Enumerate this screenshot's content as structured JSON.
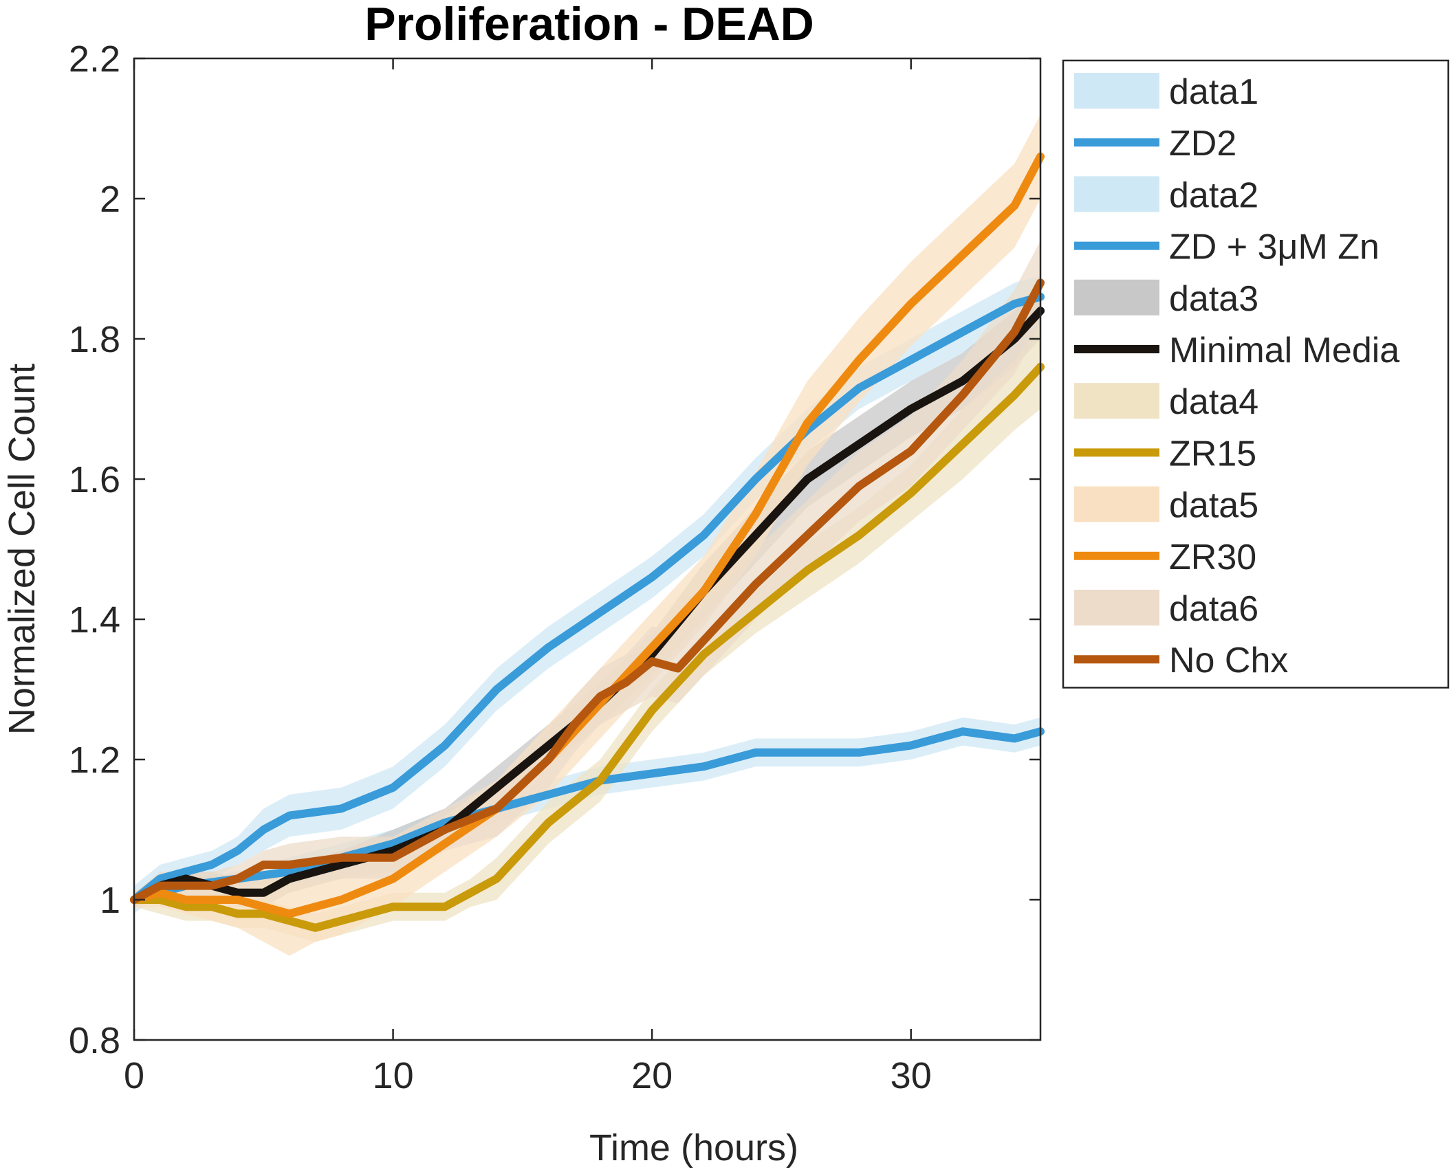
{
  "chart_data": {
    "type": "line",
    "title": "Proliferation - DEAD",
    "xlabel": "Time (hours)",
    "ylabel": "Normalized Cell Count",
    "xlim": [
      0,
      35
    ],
    "ylim": [
      0.8,
      2.2
    ],
    "xticks": [
      0,
      10,
      20,
      30
    ],
    "xtick_labels": [
      "0",
      "10",
      "20",
      "30"
    ],
    "yticks": [
      0.8,
      1,
      1.2,
      1.4,
      1.6,
      1.8,
      2,
      2.2
    ],
    "ytick_labels": [
      "0.8",
      "1",
      "1.2",
      "1.4",
      "1.6",
      "1.8",
      "2",
      "2.2"
    ],
    "grid": false,
    "legend_position": "outside-right-top",
    "legend": [
      {
        "label": "data1",
        "kind": "band",
        "color": "#cfe8f6"
      },
      {
        "label": "ZD2",
        "kind": "line",
        "color": "#3a9bd9"
      },
      {
        "label": "data2",
        "kind": "band",
        "color": "#cfe8f6"
      },
      {
        "label": "ZD + 3μM Zn",
        "kind": "line",
        "color": "#3a9bd9"
      },
      {
        "label": "data3",
        "kind": "band",
        "color": "#c8c8c8"
      },
      {
        "label": "Minimal Media",
        "kind": "line",
        "color": "#1a1410"
      },
      {
        "label": "data4",
        "kind": "band",
        "color": "#efe3c4"
      },
      {
        "label": "ZR15",
        "kind": "line",
        "color": "#c99a0a"
      },
      {
        "label": "data5",
        "kind": "band",
        "color": "#f9e0c2"
      },
      {
        "label": "ZR30",
        "kind": "line",
        "color": "#ef8a10"
      },
      {
        "label": "data6",
        "kind": "band",
        "color": "#ecdcc9"
      },
      {
        "label": "No Chx",
        "kind": "line",
        "color": "#b5570f"
      }
    ],
    "series": [
      {
        "name": "ZD2",
        "color": "#3a9bd9",
        "band_color": "#cfe8f6",
        "x": [
          0,
          1,
          2,
          3,
          4,
          5,
          6,
          8,
          10,
          12,
          14,
          16,
          18,
          20,
          22,
          24,
          26,
          28,
          30,
          32,
          34,
          35
        ],
        "y": [
          1.0,
          1.03,
          1.04,
          1.05,
          1.07,
          1.1,
          1.12,
          1.13,
          1.16,
          1.22,
          1.3,
          1.36,
          1.41,
          1.46,
          1.52,
          1.6,
          1.67,
          1.73,
          1.77,
          1.81,
          1.85,
          1.86
        ],
        "band": [
          0.02,
          0.02,
          0.02,
          0.02,
          0.02,
          0.03,
          0.03,
          0.03,
          0.03,
          0.03,
          0.03,
          0.03,
          0.03,
          0.03,
          0.03,
          0.03,
          0.03,
          0.03,
          0.03,
          0.03,
          0.03,
          0.03
        ]
      },
      {
        "name": "ZD + 3μM Zn",
        "color": "#3a9bd9",
        "band_color": "#cfe8f6",
        "x": [
          0,
          2,
          4,
          6,
          8,
          10,
          12,
          14,
          16,
          18,
          20,
          22,
          24,
          26,
          28,
          30,
          32,
          34,
          35
        ],
        "y": [
          1.0,
          1.02,
          1.03,
          1.04,
          1.06,
          1.08,
          1.11,
          1.13,
          1.15,
          1.17,
          1.18,
          1.19,
          1.21,
          1.21,
          1.21,
          1.22,
          1.24,
          1.23,
          1.24
        ],
        "band": [
          0.01,
          0.01,
          0.01,
          0.02,
          0.02,
          0.02,
          0.02,
          0.02,
          0.02,
          0.02,
          0.02,
          0.02,
          0.02,
          0.02,
          0.02,
          0.02,
          0.02,
          0.02,
          0.02
        ]
      },
      {
        "name": "Minimal Media",
        "color": "#1a1410",
        "band_color": "#c8c8c8",
        "x": [
          0,
          1,
          2,
          3,
          4,
          5,
          6,
          8,
          10,
          12,
          14,
          16,
          18,
          20,
          22,
          24,
          26,
          28,
          30,
          32,
          34,
          35
        ],
        "y": [
          1.0,
          1.02,
          1.03,
          1.02,
          1.01,
          1.01,
          1.03,
          1.05,
          1.07,
          1.1,
          1.16,
          1.22,
          1.28,
          1.35,
          1.44,
          1.52,
          1.6,
          1.65,
          1.7,
          1.74,
          1.8,
          1.84
        ],
        "band": [
          0.01,
          0.01,
          0.01,
          0.02,
          0.02,
          0.02,
          0.02,
          0.02,
          0.03,
          0.03,
          0.03,
          0.03,
          0.03,
          0.03,
          0.04,
          0.04,
          0.04,
          0.04,
          0.04,
          0.04,
          0.04,
          0.04
        ]
      },
      {
        "name": "ZR15",
        "color": "#c99a0a",
        "band_color": "#efe3c4",
        "x": [
          0,
          1,
          2,
          3,
          4,
          5,
          6,
          7,
          8,
          10,
          12,
          13,
          14,
          15,
          16,
          18,
          20,
          22,
          24,
          26,
          28,
          30,
          32,
          34,
          35
        ],
        "y": [
          1.0,
          1.0,
          0.99,
          0.99,
          0.98,
          0.98,
          0.97,
          0.96,
          0.97,
          0.99,
          0.99,
          1.01,
          1.03,
          1.07,
          1.11,
          1.17,
          1.27,
          1.35,
          1.41,
          1.47,
          1.52,
          1.58,
          1.65,
          1.72,
          1.76
        ],
        "band": [
          0.01,
          0.02,
          0.02,
          0.02,
          0.02,
          0.02,
          0.02,
          0.02,
          0.02,
          0.02,
          0.02,
          0.02,
          0.03,
          0.03,
          0.03,
          0.03,
          0.03,
          0.03,
          0.03,
          0.04,
          0.04,
          0.04,
          0.05,
          0.05,
          0.06
        ]
      },
      {
        "name": "ZR30",
        "color": "#ef8a10",
        "band_color": "#f9e0c2",
        "x": [
          0,
          1,
          2,
          3,
          4,
          5,
          6,
          7,
          8,
          10,
          12,
          14,
          16,
          18,
          20,
          22,
          24,
          26,
          28,
          30,
          32,
          34,
          35
        ],
        "y": [
          1.0,
          1.01,
          1.0,
          1.0,
          1.0,
          0.99,
          0.98,
          0.99,
          1.0,
          1.03,
          1.08,
          1.13,
          1.2,
          1.28,
          1.36,
          1.44,
          1.55,
          1.68,
          1.77,
          1.85,
          1.92,
          1.99,
          2.06
        ],
        "band": [
          0.01,
          0.02,
          0.02,
          0.03,
          0.04,
          0.05,
          0.06,
          0.05,
          0.05,
          0.04,
          0.04,
          0.04,
          0.05,
          0.05,
          0.05,
          0.05,
          0.06,
          0.06,
          0.06,
          0.06,
          0.06,
          0.06,
          0.06
        ]
      },
      {
        "name": "No Chx",
        "color": "#b5570f",
        "band_color": "#ecdcc9",
        "x": [
          0,
          1,
          2,
          3,
          4,
          5,
          6,
          8,
          10,
          12,
          14,
          16,
          17,
          18,
          19,
          20,
          21,
          22,
          24,
          26,
          28,
          30,
          32,
          34,
          35
        ],
        "y": [
          1.0,
          1.02,
          1.02,
          1.02,
          1.03,
          1.05,
          1.05,
          1.06,
          1.06,
          1.1,
          1.13,
          1.2,
          1.25,
          1.29,
          1.31,
          1.34,
          1.33,
          1.37,
          1.45,
          1.52,
          1.59,
          1.64,
          1.72,
          1.81,
          1.88
        ],
        "band": [
          0.01,
          0.02,
          0.02,
          0.02,
          0.02,
          0.02,
          0.03,
          0.03,
          0.03,
          0.03,
          0.04,
          0.04,
          0.04,
          0.04,
          0.04,
          0.05,
          0.05,
          0.05,
          0.05,
          0.05,
          0.05,
          0.05,
          0.05,
          0.06,
          0.06
        ]
      }
    ]
  }
}
